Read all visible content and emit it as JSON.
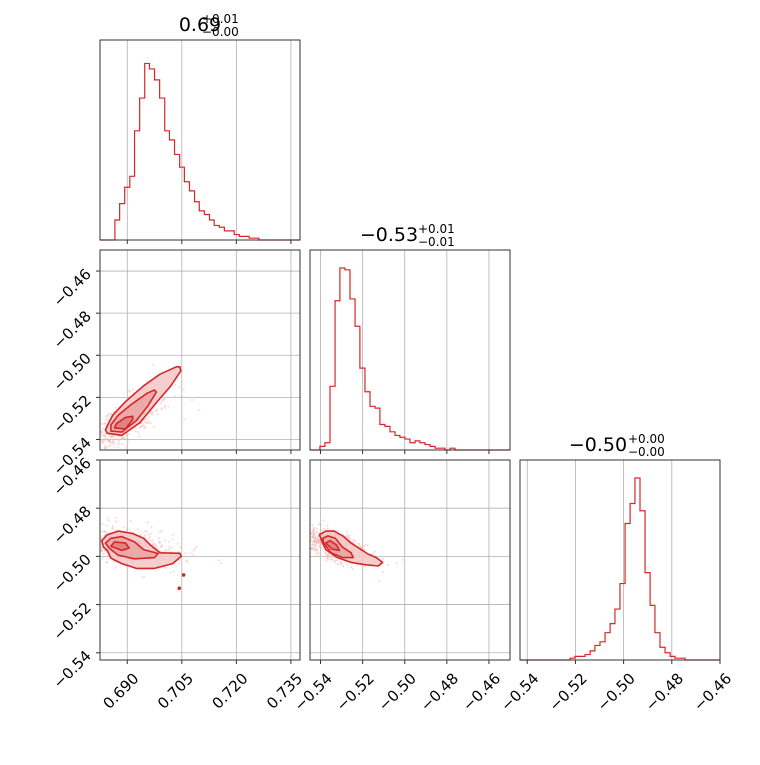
{
  "colors": {
    "series": "#d62728",
    "fill_outer": "#f3c7c7",
    "fill_mid": "#eaa3a4",
    "fill_core": "#de7c7e",
    "grid": "#b0b0b0",
    "scatter": "#f2b6b6"
  },
  "chart_data": {
    "type": "corner",
    "parameters": [
      {
        "title_value": "0.69",
        "title_plus": "+0.01",
        "title_minus": "−0.00",
        "range": [
          0.6825,
          0.7375
        ],
        "ticks": [
          0.69,
          0.705,
          0.72,
          0.735
        ],
        "tick_labels": [
          "0.690",
          "0.705",
          "0.720",
          "0.735"
        ]
      },
      {
        "title_value": "−0.53",
        "title_plus": "+0.01",
        "title_minus": "−0.01",
        "range": [
          -0.545,
          -0.45
        ],
        "ticks": [
          -0.54,
          -0.52,
          -0.5,
          -0.48,
          -0.46
        ],
        "tick_labels": [
          "−0.54",
          "−0.52",
          "−0.50",
          "−0.48",
          "−0.46"
        ]
      },
      {
        "title_value": "−0.50",
        "title_plus": "+0.00",
        "title_minus": "−0.00",
        "range": [
          -0.543,
          -0.46
        ],
        "ticks": [
          -0.54,
          -0.52,
          -0.5,
          -0.48,
          -0.46
        ],
        "tick_labels": [
          "−0.54",
          "−0.52",
          "−0.50",
          "−0.48",
          "−0.46"
        ]
      }
    ],
    "histograms": [
      {
        "param": 0,
        "bin_edges": [
          0.6825,
          0.6838,
          0.6852,
          0.6866,
          0.6879,
          0.6893,
          0.6907,
          0.692,
          0.6934,
          0.6948,
          0.6961,
          0.6975,
          0.6989,
          0.7003,
          0.7016,
          0.703,
          0.7044,
          0.7057,
          0.7071,
          0.7085,
          0.7098,
          0.7112,
          0.7126,
          0.7139,
          0.7153,
          0.7167,
          0.718,
          0.7194,
          0.7208,
          0.7221,
          0.7235,
          0.7249,
          0.7262,
          0.7276,
          0.729,
          0.7303,
          0.7317,
          0.7331,
          0.7344,
          0.7358,
          0.7375
        ],
        "counts": [
          0,
          0,
          0,
          0.11,
          0.2,
          0.29,
          0.35,
          0.6,
          0.78,
          0.97,
          0.94,
          0.88,
          0.78,
          0.6,
          0.55,
          0.47,
          0.4,
          0.32,
          0.27,
          0.21,
          0.16,
          0.14,
          0.11,
          0.08,
          0.07,
          0.05,
          0.05,
          0.03,
          0.02,
          0.02,
          0.01,
          0.01,
          0,
          0,
          0,
          0,
          0,
          0,
          0,
          0
        ]
      },
      {
        "param": 1,
        "bin_edges": [
          -0.545,
          -0.5426,
          -0.5403,
          -0.5379,
          -0.5355,
          -0.5331,
          -0.5308,
          -0.5284,
          -0.526,
          -0.5236,
          -0.5213,
          -0.5189,
          -0.5165,
          -0.5141,
          -0.5118,
          -0.5094,
          -0.507,
          -0.5046,
          -0.5023,
          -0.4999,
          -0.4975,
          -0.4951,
          -0.4928,
          -0.4904,
          -0.488,
          -0.4856,
          -0.4833,
          -0.4809,
          -0.4785,
          -0.4761,
          -0.4738,
          -0.4714,
          -0.469,
          -0.4666,
          -0.4643,
          -0.4619,
          -0.4595,
          -0.4571,
          -0.4548,
          -0.4524,
          -0.45
        ],
        "counts": [
          0,
          0,
          0.02,
          0.04,
          0.35,
          0.82,
          1.0,
          0.99,
          0.83,
          0.68,
          0.45,
          0.32,
          0.24,
          0.23,
          0.14,
          0.13,
          0.1,
          0.08,
          0.07,
          0.06,
          0.04,
          0.05,
          0.04,
          0.03,
          0.02,
          0.01,
          0.01,
          0,
          0.01,
          0,
          0,
          0,
          0,
          0,
          0,
          0,
          0,
          0,
          0,
          0
        ]
      },
      {
        "param": 2,
        "bin_edges": [
          -0.543,
          -0.5409,
          -0.5388,
          -0.5368,
          -0.5347,
          -0.5326,
          -0.5305,
          -0.5285,
          -0.5264,
          -0.5243,
          -0.5222,
          -0.5202,
          -0.5181,
          -0.516,
          -0.5139,
          -0.5119,
          -0.5098,
          -0.5077,
          -0.5056,
          -0.5036,
          -0.5015,
          -0.4994,
          -0.4973,
          -0.4953,
          -0.4932,
          -0.4911,
          -0.489,
          -0.487,
          -0.4849,
          -0.4828,
          -0.4807,
          -0.4787,
          -0.4766,
          -0.4745,
          -0.4724,
          -0.4704,
          -0.4683,
          -0.4662,
          -0.4641,
          -0.4621,
          -0.46
        ],
        "counts": [
          0,
          0,
          0,
          0,
          0,
          0,
          0,
          0,
          0,
          0,
          0.01,
          0.02,
          0.02,
          0.03,
          0.05,
          0.08,
          0.1,
          0.15,
          0.2,
          0.28,
          0.42,
          0.75,
          0.86,
          1.0,
          0.82,
          0.48,
          0.3,
          0.15,
          0.07,
          0.04,
          0.02,
          0.01,
          0.01,
          0,
          0,
          0,
          0,
          0,
          0,
          0
        ]
      }
    ],
    "scatter_2d": [
      {
        "x_param": 0,
        "y_param": 1,
        "center": [
          0.6893,
          -0.532
        ],
        "sigma": [
          0.0035,
          0.006
        ],
        "correlation": 0.8,
        "contours": [
          [
            [
              0.6845,
              -0.537
            ],
            [
              0.6885,
              -0.538
            ],
            [
              0.6935,
              -0.532
            ],
            [
              0.698,
              -0.5225
            ],
            [
              0.702,
              -0.5145
            ],
            [
              0.7047,
              -0.5075
            ],
            [
              0.7045,
              -0.5055
            ],
            [
              0.7035,
              -0.5055
            ],
            [
              0.699,
              -0.509
            ],
            [
              0.6945,
              -0.5145
            ],
            [
              0.6895,
              -0.522
            ],
            [
              0.686,
              -0.5285
            ],
            [
              0.6845,
              -0.5335
            ],
            [
              0.684,
              -0.5355
            ],
            [
              0.6845,
              -0.537
            ]
          ],
          [
            [
              0.6855,
              -0.536
            ],
            [
              0.6885,
              -0.5365
            ],
            [
              0.6925,
              -0.531
            ],
            [
              0.6955,
              -0.5245
            ],
            [
              0.698,
              -0.5175
            ],
            [
              0.6975,
              -0.5165
            ],
            [
              0.6955,
              -0.518
            ],
            [
              0.691,
              -0.5235
            ],
            [
              0.6875,
              -0.5285
            ],
            [
              0.6855,
              -0.533
            ],
            [
              0.6855,
              -0.536
            ]
          ],
          [
            [
              0.6865,
              -0.5345
            ],
            [
              0.6895,
              -0.535
            ],
            [
              0.6915,
              -0.5305
            ],
            [
              0.6915,
              -0.529
            ],
            [
              0.6895,
              -0.5295
            ],
            [
              0.687,
              -0.5325
            ],
            [
              0.6865,
              -0.5345
            ]
          ]
        ]
      },
      {
        "x_param": 0,
        "y_param": 2,
        "center": [
          0.6892,
          -0.4953
        ],
        "sigma": [
          0.0045,
          0.003
        ],
        "correlation": -0.4,
        "contours": [
          [
            [
              0.6845,
              -0.4975
            ],
            [
              0.6855,
              -0.5007
            ],
            [
              0.6885,
              -0.503
            ],
            [
              0.6925,
              -0.505
            ],
            [
              0.6975,
              -0.505
            ],
            [
              0.7025,
              -0.503
            ],
            [
              0.7048,
              -0.5
            ],
            [
              0.7045,
              -0.4987
            ],
            [
              0.699,
              -0.4985
            ],
            [
              0.6965,
              -0.4955
            ],
            [
              0.6945,
              -0.4925
            ],
            [
              0.6915,
              -0.4905
            ],
            [
              0.6875,
              -0.4895
            ],
            [
              0.6845,
              -0.491
            ],
            [
              0.683,
              -0.4935
            ],
            [
              0.6835,
              -0.4962
            ],
            [
              0.6845,
              -0.4975
            ]
          ],
          [
            [
              0.685,
              -0.4965
            ],
            [
              0.6875,
              -0.4995
            ],
            [
              0.692,
              -0.501
            ],
            [
              0.6975,
              -0.5005
            ],
            [
              0.6985,
              -0.4988
            ],
            [
              0.6945,
              -0.4972
            ],
            [
              0.692,
              -0.494
            ],
            [
              0.6885,
              -0.4918
            ],
            [
              0.6855,
              -0.4925
            ],
            [
              0.684,
              -0.4945
            ],
            [
              0.685,
              -0.4965
            ]
          ],
          [
            [
              0.6855,
              -0.4958
            ],
            [
              0.6885,
              -0.4975
            ],
            [
              0.6905,
              -0.4965
            ],
            [
              0.6895,
              -0.4945
            ],
            [
              0.6865,
              -0.494
            ],
            [
              0.6855,
              -0.4958
            ]
          ]
        ],
        "islands": [
          [
            0.7043,
            -0.5132
          ],
          [
            0.7055,
            -0.5077
          ]
        ]
      },
      {
        "x_param": 1,
        "y_param": 2,
        "center": [
          -0.5345,
          -0.4955
        ],
        "sigma": [
          0.0055,
          0.0028
        ],
        "correlation": -0.6,
        "contours": [
          [
            [
              -0.5395,
              -0.4935
            ],
            [
              -0.5375,
              -0.4972
            ],
            [
              -0.532,
              -0.5005
            ],
            [
              -0.5255,
              -0.5025
            ],
            [
              -0.5185,
              -0.5035
            ],
            [
              -0.5125,
              -0.504
            ],
            [
              -0.5105,
              -0.5025
            ],
            [
              -0.5135,
              -0.5005
            ],
            [
              -0.5175,
              -0.499
            ],
            [
              -0.521,
              -0.497
            ],
            [
              -0.5255,
              -0.4945
            ],
            [
              -0.529,
              -0.4918
            ],
            [
              -0.5335,
              -0.4895
            ],
            [
              -0.5375,
              -0.4895
            ],
            [
              -0.5405,
              -0.491
            ],
            [
              -0.5395,
              -0.4935
            ]
          ],
          [
            [
              -0.5385,
              -0.4945
            ],
            [
              -0.535,
              -0.4985
            ],
            [
              -0.5295,
              -0.5005
            ],
            [
              -0.5245,
              -0.5005
            ],
            [
              -0.5255,
              -0.4985
            ],
            [
              -0.5295,
              -0.4962
            ],
            [
              -0.533,
              -0.4925
            ],
            [
              -0.5365,
              -0.4915
            ],
            [
              -0.539,
              -0.4925
            ],
            [
              -0.5385,
              -0.4945
            ]
          ],
          [
            [
              -0.5375,
              -0.4945
            ],
            [
              -0.5345,
              -0.497
            ],
            [
              -0.531,
              -0.4975
            ],
            [
              -0.5325,
              -0.4952
            ],
            [
              -0.5355,
              -0.4935
            ],
            [
              -0.5375,
              -0.4945
            ]
          ]
        ]
      }
    ]
  }
}
